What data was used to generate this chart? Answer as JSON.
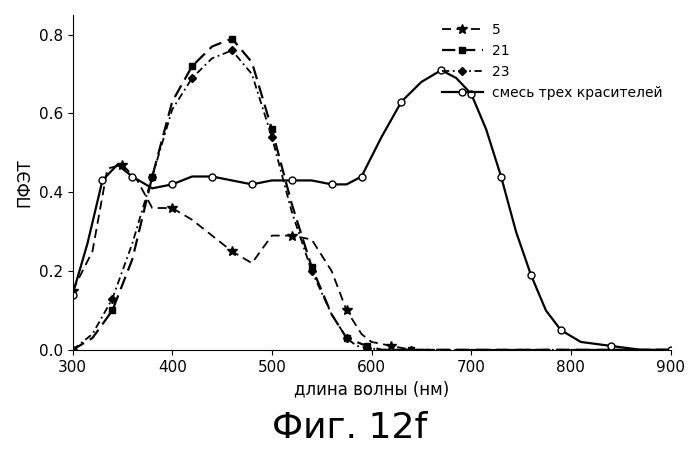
{
  "title": "Фиг. 12f",
  "ylabel": "ПФЭТ",
  "xlabel": "длина волны (нм)",
  "xlim": [
    300,
    900
  ],
  "ylim": [
    0.0,
    0.85
  ],
  "yticks": [
    0.0,
    0.2,
    0.4,
    0.6,
    0.8
  ],
  "xticks": [
    300,
    400,
    500,
    600,
    700,
    800,
    900
  ],
  "series": {
    "5": {
      "x": [
        300,
        320,
        335,
        350,
        365,
        380,
        400,
        420,
        440,
        460,
        480,
        500,
        520,
        540,
        560,
        575,
        590,
        600,
        620,
        640,
        900
      ],
      "y": [
        0.15,
        0.25,
        0.46,
        0.47,
        0.43,
        0.36,
        0.36,
        0.33,
        0.29,
        0.25,
        0.22,
        0.29,
        0.29,
        0.28,
        0.2,
        0.1,
        0.04,
        0.02,
        0.01,
        0.0,
        0.0
      ],
      "linestyle": "dashed",
      "marker": "*",
      "color": "#000000",
      "linewidth": 1.3,
      "markersize": 7,
      "markerfacecolor": "black",
      "dashes": [
        5,
        3
      ]
    },
    "21": {
      "x": [
        300,
        320,
        340,
        360,
        380,
        400,
        420,
        440,
        460,
        480,
        500,
        520,
        540,
        560,
        575,
        585,
        595,
        610,
        640,
        900
      ],
      "y": [
        0.0,
        0.03,
        0.1,
        0.23,
        0.44,
        0.63,
        0.72,
        0.77,
        0.79,
        0.73,
        0.56,
        0.37,
        0.21,
        0.09,
        0.03,
        0.02,
        0.01,
        0.0,
        0.0,
        0.0
      ],
      "linestyle": "dashed",
      "marker": "s",
      "color": "#000000",
      "linewidth": 1.6,
      "markersize": 5,
      "markerfacecolor": "black",
      "dashes": [
        6,
        3
      ]
    },
    "23": {
      "x": [
        300,
        320,
        340,
        360,
        380,
        400,
        420,
        440,
        460,
        480,
        500,
        520,
        540,
        560,
        575,
        585,
        595,
        610,
        640,
        900
      ],
      "y": [
        0.0,
        0.04,
        0.13,
        0.27,
        0.44,
        0.61,
        0.69,
        0.74,
        0.76,
        0.7,
        0.54,
        0.35,
        0.2,
        0.09,
        0.03,
        0.01,
        0.005,
        0.0,
        0.0,
        0.0
      ],
      "linestyle": "dashed",
      "marker": "D",
      "color": "#000000",
      "linewidth": 1.3,
      "markersize": 4,
      "markerfacecolor": "black",
      "dashes": [
        4,
        2,
        1,
        2
      ]
    },
    "mix": {
      "x": [
        300,
        315,
        330,
        345,
        360,
        380,
        400,
        420,
        440,
        460,
        480,
        500,
        520,
        540,
        560,
        575,
        590,
        610,
        630,
        650,
        670,
        685,
        700,
        715,
        730,
        745,
        760,
        775,
        790,
        810,
        840,
        870,
        900
      ],
      "y": [
        0.14,
        0.27,
        0.43,
        0.47,
        0.44,
        0.41,
        0.42,
        0.44,
        0.44,
        0.43,
        0.42,
        0.43,
        0.43,
        0.43,
        0.42,
        0.42,
        0.44,
        0.54,
        0.63,
        0.68,
        0.71,
        0.69,
        0.65,
        0.56,
        0.44,
        0.3,
        0.19,
        0.1,
        0.05,
        0.02,
        0.01,
        0.0,
        0.0
      ],
      "linestyle": "solid",
      "marker": "o",
      "color": "#000000",
      "linewidth": 1.6,
      "markersize": 5,
      "markerfacecolor": "white",
      "dashes": []
    }
  },
  "legend_labels": [
    "5",
    "21",
    "23",
    "смесь трех красителей"
  ],
  "legend_loc": "upper right",
  "background_color": "#ffffff",
  "title_fontsize": 26,
  "axis_fontsize": 12,
  "tick_fontsize": 11
}
